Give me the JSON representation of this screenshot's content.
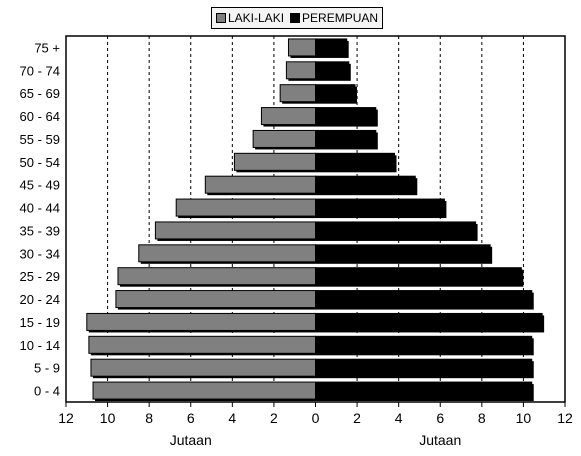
{
  "chart_data": {
    "type": "bar",
    "orientation": "horizontal-pyramid",
    "categories": [
      "0 - 4",
      "5 - 9",
      "10 - 14",
      "15 - 19",
      "20 - 24",
      "25 - 29",
      "30 - 34",
      "35 - 39",
      "40 - 44",
      "45 - 49",
      "50 - 54",
      "55 - 59",
      "60 - 64",
      "65 - 69",
      "70 - 74",
      "75 +"
    ],
    "series": [
      {
        "name": "LAKI-LAKI",
        "color": "#808080",
        "values": [
          10.7,
          10.8,
          10.9,
          11.0,
          9.6,
          9.5,
          8.5,
          7.7,
          6.7,
          5.3,
          3.9,
          3.0,
          2.6,
          1.7,
          1.4,
          1.3
        ]
      },
      {
        "name": "PEREMPUAN",
        "color": "#000000",
        "values": [
          10.4,
          10.4,
          10.4,
          10.9,
          10.4,
          9.9,
          8.4,
          7.7,
          6.2,
          4.8,
          3.8,
          2.9,
          2.9,
          1.9,
          1.6,
          1.5
        ]
      }
    ],
    "xticks": [
      "12",
      "10",
      "8",
      "6",
      "4",
      "2",
      "0",
      "2",
      "4",
      "6",
      "8",
      "10",
      "12"
    ],
    "xlim": [
      -12,
      12
    ],
    "xlabel_left": "Jutaan",
    "xlabel_right": "Jutaan",
    "grid": "vertical-dashed",
    "legend_position": "top-center"
  }
}
